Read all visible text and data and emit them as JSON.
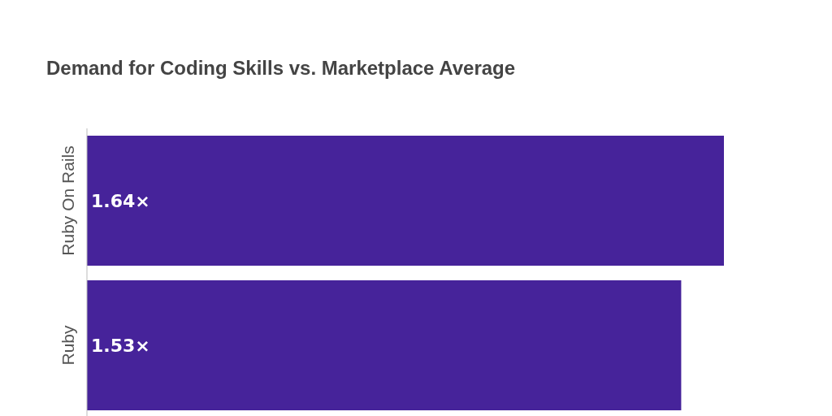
{
  "chart_data": {
    "type": "bar",
    "orientation": "horizontal",
    "title": "Demand for Coding Skills vs. Marketplace Average",
    "categories": [
      "Ruby On Rails",
      "Ruby"
    ],
    "values": [
      1.64,
      1.53
    ],
    "value_labels": [
      "1.64×",
      "1.53×"
    ],
    "color": "#46239a"
  }
}
